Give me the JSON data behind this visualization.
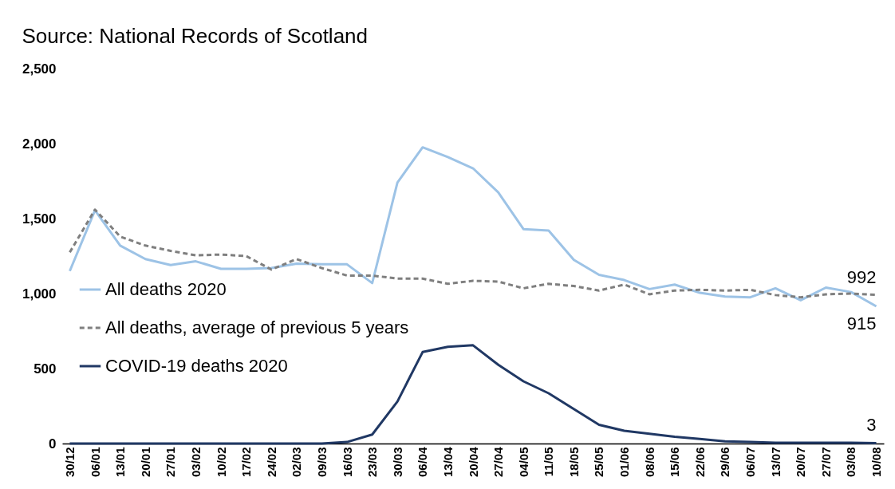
{
  "chart_data": {
    "type": "line",
    "annotations": [
      "Source: National Records of Scotland"
    ],
    "categories": [
      "30/12",
      "06/01",
      "13/01",
      "20/01",
      "27/01",
      "03/02",
      "10/02",
      "17/02",
      "24/02",
      "02/03",
      "09/03",
      "16/03",
      "23/03",
      "30/03",
      "06/04",
      "13/04",
      "20/04",
      "27/04",
      "04/05",
      "11/05",
      "18/05",
      "25/05",
      "01/06",
      "08/06",
      "15/06",
      "22/06",
      "29/06",
      "06/07",
      "13/07",
      "20/07",
      "27/07",
      "03/08",
      "10/08"
    ],
    "series": [
      {
        "name": "All deaths 2020",
        "color": "#9dc3e6",
        "line_style": "solid",
        "values": [
          1150,
          1555,
          1320,
          1230,
          1190,
          1215,
          1165,
          1165,
          1170,
          1200,
          1195,
          1195,
          1070,
          1740,
          1975,
          1910,
          1835,
          1675,
          1430,
          1420,
          1225,
          1125,
          1090,
          1030,
          1060,
          1005,
          980,
          975,
          1035,
          955,
          1040,
          1010,
          915
        ],
        "value_labels": [
          null,
          null,
          null,
          null,
          null,
          null,
          null,
          null,
          null,
          null,
          null,
          null,
          null,
          null,
          null,
          null,
          null,
          null,
          null,
          null,
          null,
          null,
          null,
          null,
          null,
          null,
          null,
          null,
          null,
          null,
          null,
          null,
          "915"
        ]
      },
      {
        "name": "All deaths, average of previous 5 years",
        "color": "#7f7f7f",
        "line_style": "dashed",
        "values": [
          1275,
          1560,
          1380,
          1320,
          1285,
          1255,
          1260,
          1250,
          1160,
          1230,
          1170,
          1120,
          1120,
          1100,
          1100,
          1065,
          1085,
          1080,
          1035,
          1065,
          1050,
          1020,
          1060,
          995,
          1020,
          1025,
          1020,
          1025,
          990,
          975,
          995,
          1000,
          992
        ],
        "value_labels": [
          null,
          null,
          null,
          null,
          null,
          null,
          null,
          null,
          null,
          null,
          null,
          null,
          null,
          null,
          null,
          null,
          null,
          null,
          null,
          null,
          null,
          null,
          null,
          null,
          null,
          null,
          null,
          null,
          null,
          null,
          null,
          null,
          "992"
        ]
      },
      {
        "name": "COVID-19 deaths 2020",
        "color": "#203864",
        "line_style": "solid",
        "values": [
          0,
          0,
          0,
          0,
          0,
          0,
          0,
          0,
          0,
          0,
          0,
          10,
          60,
          280,
          610,
          645,
          655,
          525,
          415,
          335,
          230,
          125,
          85,
          65,
          45,
          30,
          15,
          10,
          5,
          5,
          5,
          5,
          3
        ],
        "value_labels": [
          null,
          null,
          null,
          null,
          null,
          null,
          null,
          null,
          null,
          null,
          null,
          null,
          null,
          null,
          null,
          null,
          null,
          null,
          null,
          null,
          null,
          null,
          null,
          null,
          null,
          null,
          null,
          null,
          null,
          null,
          null,
          null,
          "3"
        ]
      }
    ],
    "ylim": [
      0,
      2500
    ],
    "yticks": [
      {
        "value": 0,
        "label": "0"
      },
      {
        "value": 500,
        "label": "500"
      },
      {
        "value": 1000,
        "label": "1,000"
      },
      {
        "value": 1500,
        "label": "1,500"
      },
      {
        "value": 2000,
        "label": "2,000"
      },
      {
        "value": 2500,
        "label": "2,500"
      }
    ],
    "grid": false,
    "legend": "left",
    "marker": "none"
  }
}
